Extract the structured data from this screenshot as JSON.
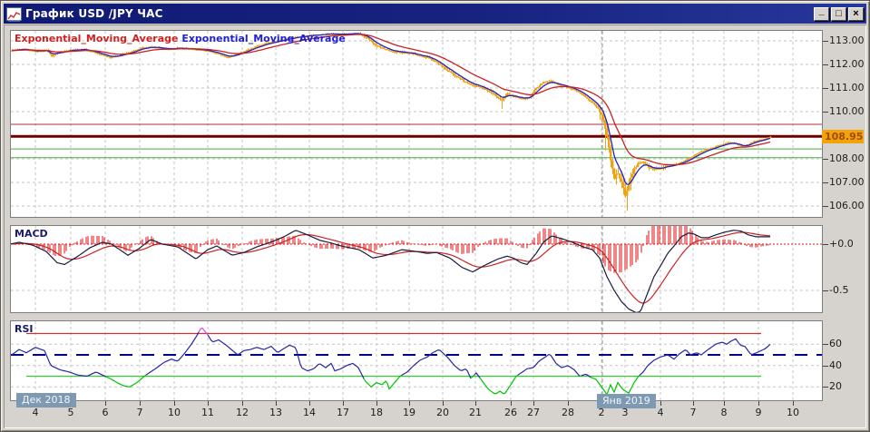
{
  "window": {
    "title": "График USD /JPY ЧАС",
    "buttons": {
      "minimize": "_",
      "maximize": "□",
      "close": "×"
    }
  },
  "labels": {
    "ema_red": "Exponential_Moving_Average",
    "ema_blue": "Exponential_Moving_Average",
    "macd": "MACD",
    "rsi": "RSI",
    "era_left": "Дек 2018",
    "era_right": "Янв 2019",
    "current_price": "108.95"
  },
  "colors": {
    "candle": "#eea312",
    "ema_fast": "#2222cc",
    "ema_slow": "#cc2222",
    "grid": "#c6c6c6",
    "separator": "#8e8e8e",
    "macd_main": "#1c1c3e",
    "macd_signal": "#cc2222",
    "macd_hist": "#dd1010",
    "rsi_line": "#2626a6",
    "rsi_over": "#e044e0",
    "rsi_under": "#00c400",
    "level_red": "#cc3333",
    "level_green": "#33cc33",
    "mid_line": "#00008b",
    "hline_red": "#b03030",
    "hline_dark": "#6e0000",
    "hline_green": "#3cb43c",
    "price_badge_bg": "#f0a30a"
  },
  "chart_data": [
    {
      "type": "candlestick",
      "symbol": "USD/JPY",
      "timeframe": "H1",
      "ylim": [
        105.5,
        113.45
      ],
      "yticks": [
        {
          "value": 113,
          "label": "113.00"
        },
        {
          "value": 112,
          "label": "112.00"
        },
        {
          "value": 111,
          "label": "111.00"
        },
        {
          "value": 110,
          "label": "110.00"
        },
        {
          "value": 108,
          "label": "108.00"
        },
        {
          "value": 107,
          "label": "107.00"
        },
        {
          "value": 106,
          "label": "106.00"
        }
      ],
      "current_price": {
        "value": 108.95,
        "label": "108.95"
      },
      "hlines": [
        {
          "value": 109.46,
          "color_key": "hline_red",
          "width": 1
        },
        {
          "value": 108.95,
          "color_key": "hline_dark",
          "width": 3
        },
        {
          "value": 108.42,
          "color_key": "hline_green",
          "width": 1
        },
        {
          "value": 108.05,
          "color_key": "hline_green",
          "width": 1
        }
      ],
      "close_path": [
        [
          12,
          112.6
        ],
        [
          25,
          112.65
        ],
        [
          38,
          112.55
        ],
        [
          50,
          112.6
        ],
        [
          56,
          112.35
        ],
        [
          62,
          112.5
        ],
        [
          75,
          112.6
        ],
        [
          90,
          112.65
        ],
        [
          100,
          112.55
        ],
        [
          112,
          112.4
        ],
        [
          120,
          112.3
        ],
        [
          128,
          112.35
        ],
        [
          136,
          112.45
        ],
        [
          145,
          112.55
        ],
        [
          155,
          112.7
        ],
        [
          165,
          112.75
        ],
        [
          175,
          112.7
        ],
        [
          185,
          112.65
        ],
        [
          196,
          112.7
        ],
        [
          210,
          112.65
        ],
        [
          225,
          112.6
        ],
        [
          240,
          112.45
        ],
        [
          250,
          112.3
        ],
        [
          258,
          112.4
        ],
        [
          268,
          112.55
        ],
        [
          280,
          112.75
        ],
        [
          292,
          112.9
        ],
        [
          305,
          113.0
        ],
        [
          318,
          113.1
        ],
        [
          332,
          113.2
        ],
        [
          346,
          113.25
        ],
        [
          360,
          113.3
        ],
        [
          375,
          113.28
        ],
        [
          388,
          113.32
        ],
        [
          395,
          113.3
        ],
        [
          405,
          113.1
        ],
        [
          412,
          112.85
        ],
        [
          420,
          112.7
        ],
        [
          430,
          112.55
        ],
        [
          445,
          112.5
        ],
        [
          460,
          112.4
        ],
        [
          470,
          112.3
        ],
        [
          480,
          112.1
        ],
        [
          490,
          111.8
        ],
        [
          500,
          111.55
        ],
        [
          510,
          111.3
        ],
        [
          518,
          111.15
        ],
        [
          528,
          111.05
        ],
        [
          538,
          110.85
        ],
        [
          545,
          110.7
        ],
        [
          552,
          110.45
        ],
        [
          558,
          110.75
        ],
        [
          565,
          110.65
        ],
        [
          575,
          110.55
        ],
        [
          582,
          110.6
        ],
        [
          590,
          111.0
        ],
        [
          598,
          111.25
        ],
        [
          606,
          111.3
        ],
        [
          614,
          111.15
        ],
        [
          622,
          111.05
        ],
        [
          630,
          110.95
        ],
        [
          638,
          110.8
        ],
        [
          646,
          110.55
        ],
        [
          654,
          110.3
        ],
        [
          660,
          110.05
        ],
        [
          664,
          109.7
        ],
        [
          668,
          108.9
        ],
        [
          672,
          107.9
        ],
        [
          676,
          107.2
        ],
        [
          680,
          107.45
        ],
        [
          684,
          107.0
        ],
        [
          688,
          106.5
        ],
        [
          692,
          106.9
        ],
        [
          696,
          107.4
        ],
        [
          702,
          107.8
        ],
        [
          708,
          107.9
        ],
        [
          714,
          107.65
        ],
        [
          720,
          107.55
        ],
        [
          726,
          107.6
        ],
        [
          734,
          107.7
        ],
        [
          742,
          107.75
        ],
        [
          750,
          107.85
        ],
        [
          758,
          108.0
        ],
        [
          766,
          108.2
        ],
        [
          774,
          108.35
        ],
        [
          782,
          108.45
        ],
        [
          790,
          108.55
        ],
        [
          798,
          108.65
        ],
        [
          806,
          108.7
        ],
        [
          812,
          108.6
        ],
        [
          818,
          108.5
        ],
        [
          824,
          108.6
        ],
        [
          830,
          108.75
        ],
        [
          836,
          108.8
        ],
        [
          842,
          108.85
        ],
        [
          848,
          108.92
        ]
      ],
      "special_wicks": [
        [
          552,
          110.12
        ],
        [
          666,
          108.35
        ],
        [
          690,
          105.8
        ]
      ],
      "xticks": [
        [
          38,
          "4"
        ],
        [
          77,
          "5"
        ],
        [
          115,
          "6"
        ],
        [
          153,
          "7"
        ],
        [
          191,
          "10"
        ],
        [
          228,
          "11"
        ],
        [
          266,
          "12"
        ],
        [
          303,
          "13"
        ],
        [
          340,
          "14"
        ],
        [
          377,
          "17"
        ],
        [
          414,
          "18"
        ],
        [
          450,
          "19"
        ],
        [
          487,
          "20"
        ],
        [
          523,
          "21"
        ],
        [
          562,
          "26"
        ],
        [
          587,
          "27"
        ],
        [
          625,
          "28"
        ],
        [
          662,
          "2"
        ],
        [
          688,
          "3"
        ],
        [
          727,
          "4"
        ],
        [
          763,
          "7"
        ],
        [
          797,
          "8"
        ],
        [
          835,
          "9"
        ],
        [
          873,
          "10"
        ]
      ],
      "month_separator_x": 663,
      "data_end_x": 848
    },
    {
      "type": "line",
      "name": "MACD",
      "ylim": [
        -0.78,
        0.21
      ],
      "yticks": [
        {
          "value": 0.0,
          "label": "+0.0"
        },
        {
          "value": -0.5,
          "label": "-0.5"
        }
      ],
      "main_line": [
        [
          10,
          0.0
        ],
        [
          20,
          0.02
        ],
        [
          35,
          -0.01
        ],
        [
          50,
          -0.08
        ],
        [
          62,
          -0.2
        ],
        [
          70,
          -0.22
        ],
        [
          85,
          -0.13
        ],
        [
          98,
          -0.04
        ],
        [
          112,
          0.02
        ],
        [
          122,
          0.0
        ],
        [
          140,
          -0.12
        ],
        [
          152,
          -0.05
        ],
        [
          165,
          0.05
        ],
        [
          178,
          0.0
        ],
        [
          195,
          -0.03
        ],
        [
          215,
          -0.16
        ],
        [
          228,
          -0.06
        ],
        [
          238,
          -0.02
        ],
        [
          255,
          -0.12
        ],
        [
          268,
          -0.09
        ],
        [
          282,
          -0.03
        ],
        [
          300,
          0.03
        ],
        [
          312,
          0.08
        ],
        [
          325,
          0.15
        ],
        [
          338,
          0.1
        ],
        [
          352,
          0.04
        ],
        [
          365,
          0.01
        ],
        [
          375,
          -0.02
        ],
        [
          385,
          -0.04
        ],
        [
          395,
          -0.06
        ],
        [
          410,
          -0.15
        ],
        [
          425,
          -0.12
        ],
        [
          442,
          -0.06
        ],
        [
          458,
          -0.08
        ],
        [
          470,
          -0.1
        ],
        [
          480,
          -0.09
        ],
        [
          495,
          -0.15
        ],
        [
          508,
          -0.25
        ],
        [
          520,
          -0.3
        ],
        [
          535,
          -0.22
        ],
        [
          548,
          -0.16
        ],
        [
          558,
          -0.13
        ],
        [
          565,
          -0.15
        ],
        [
          573,
          -0.2
        ],
        [
          580,
          -0.22
        ],
        [
          590,
          -0.1
        ],
        [
          598,
          0.02
        ],
        [
          607,
          0.09
        ],
        [
          618,
          0.06
        ],
        [
          630,
          0.02
        ],
        [
          642,
          -0.03
        ],
        [
          652,
          -0.06
        ],
        [
          660,
          -0.15
        ],
        [
          668,
          -0.35
        ],
        [
          676,
          -0.5
        ],
        [
          684,
          -0.62
        ],
        [
          692,
          -0.7
        ],
        [
          700,
          -0.74
        ],
        [
          705,
          -0.73
        ],
        [
          712,
          -0.55
        ],
        [
          720,
          -0.35
        ],
        [
          728,
          -0.22
        ],
        [
          735,
          -0.1
        ],
        [
          742,
          -0.02
        ],
        [
          750,
          0.08
        ],
        [
          758,
          0.12
        ],
        [
          764,
          0.11
        ],
        [
          772,
          0.07
        ],
        [
          780,
          0.07
        ],
        [
          788,
          0.1
        ],
        [
          798,
          0.13
        ],
        [
          808,
          0.15
        ],
        [
          816,
          0.14
        ],
        [
          824,
          0.1
        ],
        [
          832,
          0.08
        ],
        [
          840,
          0.08
        ],
        [
          846,
          0.08
        ]
      ],
      "signal": "EMA(main)",
      "histogram": "main-signal"
    },
    {
      "type": "line",
      "name": "RSI",
      "ylim": [
        7,
        82
      ],
      "yticks": [
        {
          "value": 60,
          "label": "60"
        },
        {
          "value": 40,
          "label": "40"
        },
        {
          "value": 20,
          "label": "20"
        }
      ],
      "levels": [
        {
          "value": 70,
          "color_key": "level_red"
        },
        {
          "value": 50,
          "color_key": "mid_line",
          "style": "dashed"
        },
        {
          "value": 30,
          "color_key": "level_green"
        }
      ],
      "values": [
        [
          12,
          50
        ],
        [
          20,
          55
        ],
        [
          28,
          52
        ],
        [
          38,
          57
        ],
        [
          48,
          54
        ],
        [
          55,
          40
        ],
        [
          65,
          36
        ],
        [
          75,
          34
        ],
        [
          85,
          31
        ],
        [
          95,
          30
        ],
        [
          105,
          34
        ],
        [
          112,
          31
        ],
        [
          120,
          28
        ],
        [
          128,
          24
        ],
        [
          135,
          21
        ],
        [
          142,
          20
        ],
        [
          150,
          24
        ],
        [
          158,
          30
        ],
        [
          165,
          34
        ],
        [
          172,
          38
        ],
        [
          180,
          43
        ],
        [
          188,
          46
        ],
        [
          195,
          44
        ],
        [
          203,
          52
        ],
        [
          210,
          60
        ],
        [
          216,
          68
        ],
        [
          221,
          76
        ],
        [
          227,
          70
        ],
        [
          233,
          62
        ],
        [
          240,
          64
        ],
        [
          247,
          60
        ],
        [
          254,
          55
        ],
        [
          261,
          50
        ],
        [
          268,
          54
        ],
        [
          275,
          55
        ],
        [
          282,
          57
        ],
        [
          290,
          55
        ],
        [
          298,
          58
        ],
        [
          305,
          52
        ],
        [
          312,
          56
        ],
        [
          318,
          59
        ],
        [
          325,
          57
        ],
        [
          331,
          38
        ],
        [
          338,
          35
        ],
        [
          345,
          37
        ],
        [
          351,
          42
        ],
        [
          358,
          38
        ],
        [
          364,
          42
        ],
        [
          368,
          35
        ],
        [
          375,
          37
        ],
        [
          381,
          40
        ],
        [
          388,
          42
        ],
        [
          394,
          38
        ],
        [
          401,
          26
        ],
        [
          408,
          20
        ],
        [
          414,
          24
        ],
        [
          420,
          22
        ],
        [
          425,
          26
        ],
        [
          428,
          18
        ],
        [
          434,
          24
        ],
        [
          440,
          30
        ],
        [
          448,
          34
        ],
        [
          455,
          40
        ],
        [
          462,
          45
        ],
        [
          470,
          48
        ],
        [
          476,
          52
        ],
        [
          483,
          55
        ],
        [
          492,
          48
        ],
        [
          500,
          40
        ],
        [
          507,
          35
        ],
        [
          513,
          37
        ],
        [
          518,
          28
        ],
        [
          524,
          33
        ],
        [
          530,
          26
        ],
        [
          537,
          18
        ],
        [
          545,
          13
        ],
        [
          550,
          16
        ],
        [
          555,
          13
        ],
        [
          562,
          22
        ],
        [
          568,
          30
        ],
        [
          575,
          34
        ],
        [
          580,
          37
        ],
        [
          587,
          38
        ],
        [
          593,
          44
        ],
        [
          600,
          48
        ],
        [
          605,
          51
        ],
        [
          612,
          42
        ],
        [
          618,
          38
        ],
        [
          625,
          40
        ],
        [
          632,
          36
        ],
        [
          638,
          30
        ],
        [
          645,
          32
        ],
        [
          650,
          29
        ],
        [
          656,
          27
        ],
        [
          662,
          20
        ],
        [
          668,
          13
        ],
        [
          672,
          22
        ],
        [
          676,
          15
        ],
        [
          680,
          24
        ],
        [
          685,
          18
        ],
        [
          692,
          14
        ],
        [
          698,
          24
        ],
        [
          703,
          30
        ],
        [
          708,
          34
        ],
        [
          713,
          40
        ],
        [
          720,
          45
        ],
        [
          727,
          48
        ],
        [
          735,
          50
        ],
        [
          742,
          46
        ],
        [
          748,
          51
        ],
        [
          755,
          55
        ],
        [
          760,
          50
        ],
        [
          767,
          52
        ],
        [
          772,
          50
        ],
        [
          778,
          54
        ],
        [
          783,
          57
        ],
        [
          788,
          60
        ],
        [
          795,
          62
        ],
        [
          800,
          60
        ],
        [
          805,
          63
        ],
        [
          810,
          65
        ],
        [
          815,
          59
        ],
        [
          820,
          58
        ],
        [
          827,
          50
        ],
        [
          833,
          52
        ],
        [
          838,
          54
        ],
        [
          843,
          56
        ],
        [
          848,
          60
        ]
      ]
    }
  ]
}
